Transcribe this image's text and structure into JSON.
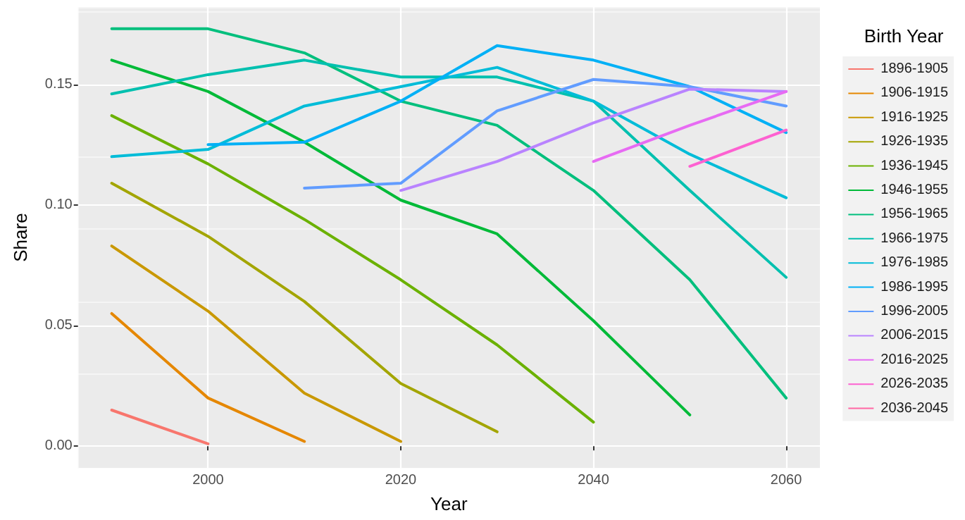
{
  "chart_data": {
    "type": "line",
    "xlabel": "Year",
    "ylabel": "Share",
    "legend_title": "Birth Year",
    "legend": "right",
    "grid": true,
    "marker": "none",
    "line_style": "solid",
    "x": [
      1990,
      2000,
      2010,
      2020,
      2030,
      2040,
      2050,
      2060
    ],
    "xlim": [
      1986.5,
      2063.5
    ],
    "xticks": [
      2000,
      2020,
      2040,
      2060
    ],
    "ylim": [
      -0.009,
      0.182
    ],
    "yticks": [
      {
        "value": 0,
        "label": "0.00"
      },
      {
        "value": 0.05,
        "label": "0.05"
      },
      {
        "value": 0.1,
        "label": "0.10"
      },
      {
        "value": 0.15,
        "label": "0.15"
      }
    ],
    "series": [
      {
        "name": "1896-1905",
        "color": "#f8766d",
        "values": [
          0.015,
          0.001,
          null,
          null,
          null,
          null,
          null,
          null
        ]
      },
      {
        "name": "1906-1915",
        "color": "#e58700",
        "values": [
          0.055,
          0.02,
          0.002,
          null,
          null,
          null,
          null,
          null
        ]
      },
      {
        "name": "1916-1925",
        "color": "#c99800",
        "values": [
          0.083,
          0.056,
          0.022,
          0.002,
          null,
          null,
          null,
          null
        ]
      },
      {
        "name": "1926-1935",
        "color": "#a3a500",
        "values": [
          0.109,
          0.087,
          0.06,
          0.026,
          0.006,
          null,
          null,
          null
        ]
      },
      {
        "name": "1936-1945",
        "color": "#6bb100",
        "values": [
          0.137,
          0.117,
          0.094,
          0.069,
          0.042,
          0.01,
          null,
          null
        ]
      },
      {
        "name": "1946-1955",
        "color": "#00ba38",
        "values": [
          0.16,
          0.147,
          0.126,
          0.102,
          0.088,
          0.052,
          0.013,
          null
        ]
      },
      {
        "name": "1956-1965",
        "color": "#00bf7d",
        "values": [
          0.173,
          0.173,
          0.163,
          0.143,
          0.133,
          0.106,
          0.069,
          0.02
        ]
      },
      {
        "name": "1966-1975",
        "color": "#00c0af",
        "values": [
          0.146,
          0.154,
          0.16,
          0.153,
          0.153,
          0.143,
          0.106,
          0.07
        ]
      },
      {
        "name": "1976-1985",
        "color": "#00bcd8",
        "values": [
          0.12,
          0.123,
          0.141,
          0.149,
          0.157,
          0.143,
          0.121,
          0.103
        ]
      },
      {
        "name": "1986-1995",
        "color": "#00b0f6",
        "values": [
          null,
          0.125,
          0.126,
          0.143,
          0.166,
          0.16,
          0.149,
          0.13
        ]
      },
      {
        "name": "1996-2005",
        "color": "#619cff",
        "values": [
          null,
          null,
          0.107,
          0.109,
          0.139,
          0.152,
          0.149,
          0.141
        ]
      },
      {
        "name": "2006-2015",
        "color": "#b983ff",
        "values": [
          null,
          null,
          null,
          0.106,
          0.118,
          0.134,
          0.148,
          0.147
        ]
      },
      {
        "name": "2016-2025",
        "color": "#e76bf3",
        "values": [
          null,
          null,
          null,
          null,
          null,
          0.118,
          0.133,
          0.147
        ]
      },
      {
        "name": "2026-2035",
        "color": "#fd61d1",
        "values": [
          null,
          null,
          null,
          null,
          null,
          null,
          0.116,
          0.131
        ]
      },
      {
        "name": "2036-2045",
        "color": "#ff67a4",
        "values": [
          null,
          null,
          null,
          null,
          null,
          null,
          null,
          null
        ]
      }
    ]
  }
}
